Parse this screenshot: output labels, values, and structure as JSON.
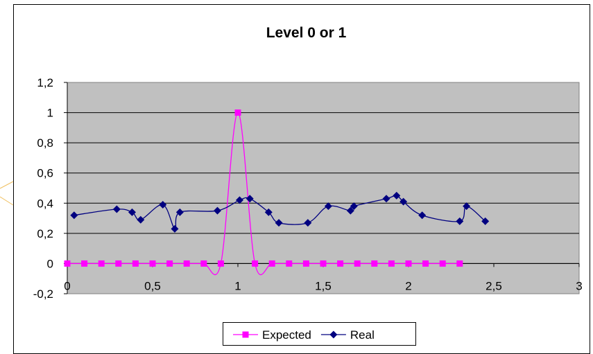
{
  "chart_data": {
    "type": "scatter",
    "title": "Level 0 or 1",
    "xlabel": "",
    "ylabel": "",
    "xlim": [
      0,
      3
    ],
    "ylim": [
      -0.2,
      1.2
    ],
    "x_ticks": [
      "0",
      "0,5",
      "1",
      "1,5",
      "2",
      "2,5",
      "3"
    ],
    "y_ticks": [
      "-0,2",
      "0",
      "0,2",
      "0,4",
      "0,6",
      "0,8",
      "1",
      "1,2"
    ],
    "grid": "horizontal",
    "legend_position": "bottom",
    "series": [
      {
        "name": "Expected",
        "color": "#FF00FF",
        "marker": "square",
        "smooth": true,
        "x": [
          0,
          0.1,
          0.2,
          0.3,
          0.4,
          0.5,
          0.6,
          0.7,
          0.8,
          0.9,
          1.0,
          1.1,
          1.2,
          1.3,
          1.4,
          1.5,
          1.6,
          1.7,
          1.8,
          1.9,
          2.0,
          2.1,
          2.2,
          2.3
        ],
        "y": [
          0,
          0,
          0,
          0,
          0,
          0,
          0,
          0,
          0,
          0,
          1,
          0,
          0,
          0,
          0,
          0,
          0,
          0,
          0,
          0,
          0,
          0,
          0,
          0
        ]
      },
      {
        "name": "Real",
        "color": "#000080",
        "marker": "diamond",
        "smooth": true,
        "x": [
          0.04,
          0.29,
          0.38,
          0.43,
          0.56,
          0.63,
          0.66,
          0.88,
          1.01,
          1.07,
          1.18,
          1.24,
          1.41,
          1.53,
          1.66,
          1.68,
          1.87,
          1.93,
          1.97,
          2.08,
          2.3,
          2.34,
          2.45
        ],
        "y": [
          0.32,
          0.36,
          0.34,
          0.29,
          0.39,
          0.23,
          0.34,
          0.35,
          0.42,
          0.43,
          0.34,
          0.27,
          0.27,
          0.38,
          0.35,
          0.38,
          0.43,
          0.45,
          0.41,
          0.32,
          0.28,
          0.38,
          0.28
        ]
      }
    ]
  },
  "decor": {
    "accent_color": "#F0C060"
  }
}
